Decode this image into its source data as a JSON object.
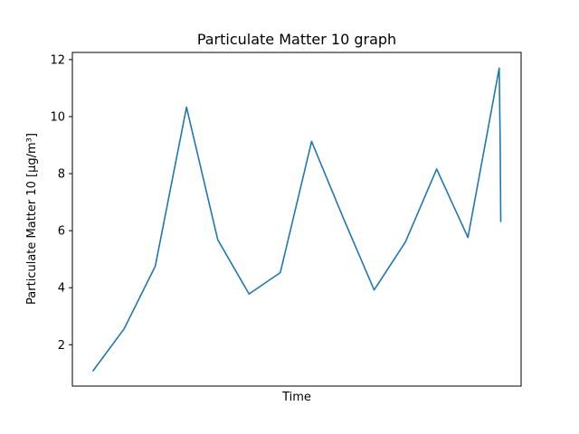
{
  "chart_data": {
    "type": "line",
    "title": "Particulate Matter 10 graph",
    "xlabel": "Time",
    "ylabel": "Particulate Matter 10 [μg/m³]",
    "ylim": [
      0.55,
      12.25
    ],
    "yticks": [
      2,
      4,
      6,
      8,
      10,
      12
    ],
    "xticks": [],
    "grid": false,
    "legend": "none",
    "colors": {
      "line": "#1f77b4"
    },
    "series": [
      {
        "x": [
          0,
          1,
          2,
          3,
          4,
          5,
          6,
          7,
          8,
          9,
          10,
          11,
          12,
          13,
          13.03,
          13.05
        ],
        "y": [
          1.07,
          2.55,
          4.75,
          10.33,
          5.68,
          3.78,
          4.53,
          9.13,
          6.48,
          3.92,
          5.6,
          8.16,
          5.76,
          11.7,
          9.2,
          6.3
        ]
      }
    ]
  }
}
